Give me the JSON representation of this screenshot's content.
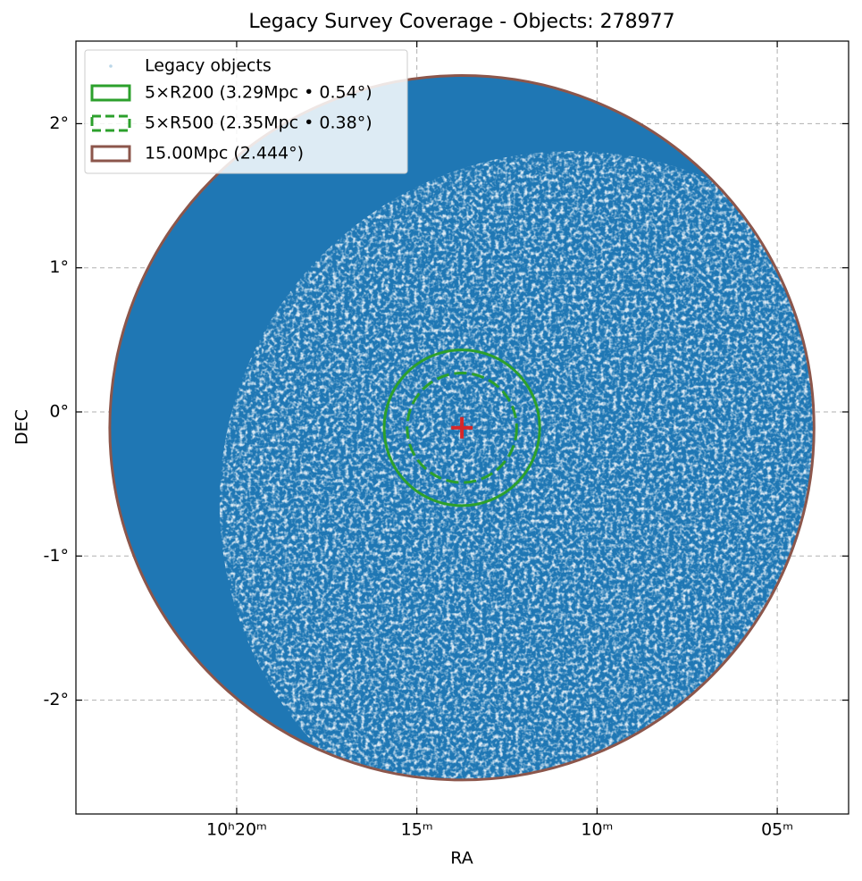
{
  "chart_data": {
    "type": "scatter",
    "title": "Legacy Survey Coverage - Objects: 278977",
    "x_label": "RA",
    "y_label": "DEC",
    "xlim": [
      24.46,
      3.02
    ],
    "ylim": [
      -2.79,
      2.573
    ],
    "xticks": [
      {
        "value": 20,
        "label": "10ʰ20ᵐ"
      },
      {
        "value": 15,
        "label": "15ᵐ"
      },
      {
        "value": 10,
        "label": "10ᵐ"
      },
      {
        "value": 5,
        "label": "05ᵐ"
      }
    ],
    "yticks": [
      {
        "value": 2,
        "label": "2°"
      },
      {
        "value": 1,
        "label": "1°"
      },
      {
        "value": 0,
        "label": "0°"
      },
      {
        "value": -1,
        "label": "-1°"
      },
      {
        "value": -2,
        "label": "-2°"
      }
    ],
    "grid": true,
    "legend": "upper left",
    "series": [
      {
        "name": "Legacy objects",
        "color": "#1f77b4"
      }
    ],
    "center": {
      "ra": 13.75,
      "dec": -0.11,
      "color": "#d62728"
    },
    "circles": [
      {
        "name": "5×R200 (3.29Mpc • 0.54°)",
        "radius_deg": 0.54,
        "color": "#2ca02c",
        "style": "solid"
      },
      {
        "name": "5×R500 (2.35Mpc • 0.38°)",
        "radius_deg": 0.38,
        "color": "#2ca02c",
        "style": "dashed"
      },
      {
        "name": "15.00Mpc (2.444°)",
        "radius_deg": 2.444,
        "color": "#8c564b",
        "style": "solid"
      }
    ]
  }
}
